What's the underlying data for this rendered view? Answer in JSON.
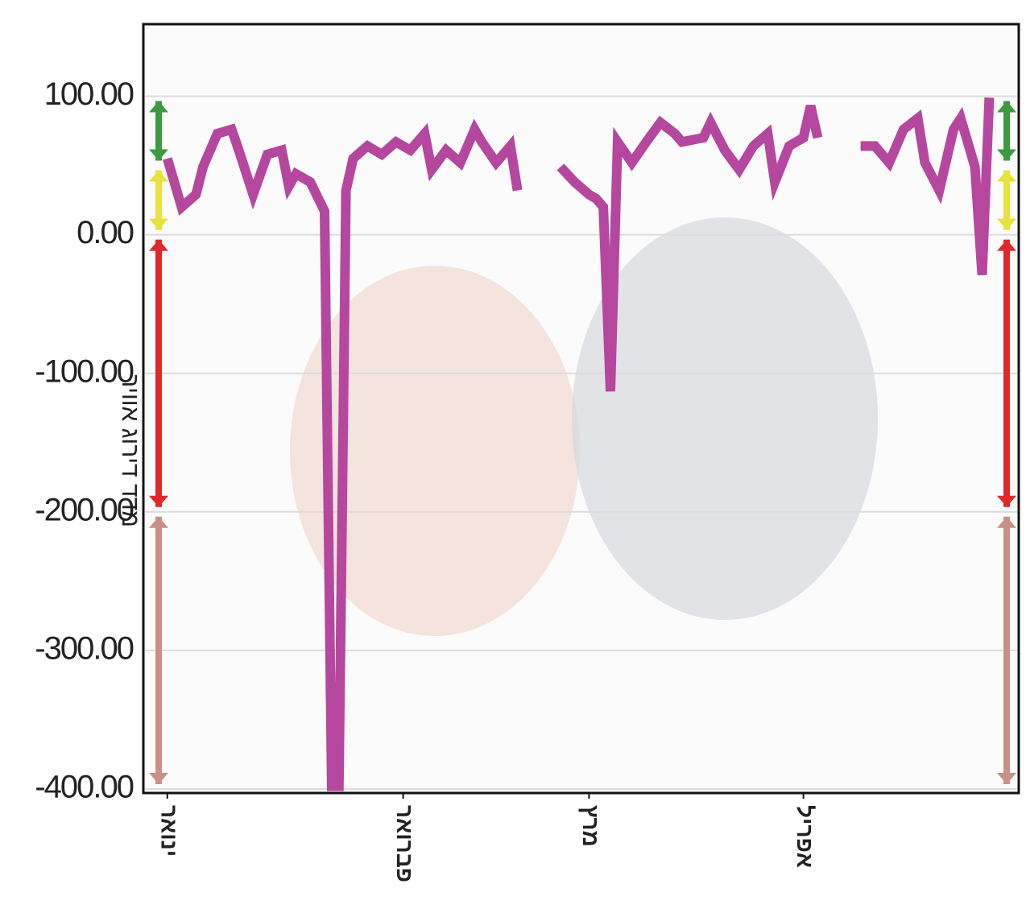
{
  "chart_data": {
    "type": "line",
    "y_label": "מדד דירוג אוויר",
    "xlim": [
      0,
      120
    ],
    "xticks": [
      {
        "value": 2,
        "label": "ינואר"
      },
      {
        "value": 35,
        "label": "פברואר"
      },
      {
        "value": 61,
        "label": "מרץ"
      },
      {
        "value": 91,
        "label": "אפריל"
      }
    ],
    "ylim": [
      -400,
      152
    ],
    "yticks": [
      {
        "value": 100,
        "label": "100.00"
      },
      {
        "value": 0,
        "label": "0.00"
      },
      {
        "value": -100,
        "label": "-100.00"
      },
      {
        "value": -200,
        "label": "-200.00"
      },
      {
        "value": -300,
        "label": "-300.00"
      },
      {
        "value": -400,
        "label": "-400.00"
      }
    ],
    "grid": true,
    "series": [
      {
        "color": "#b5489e",
        "x": [
          2,
          4,
          6,
          7,
          9,
          11,
          12,
          14,
          16,
          18,
          19,
          20,
          22,
          24,
          25,
          26,
          27,
          28,
          30,
          32,
          34,
          36,
          38,
          39,
          41,
          43,
          45,
          46,
          48,
          50,
          51,
          54,
          57,
          59,
          61,
          62,
          63,
          64,
          65,
          67,
          69,
          71,
          73,
          74,
          77,
          78,
          80,
          82,
          84,
          86,
          87,
          89,
          91,
          92,
          93,
          96,
          99,
          101,
          103,
          105,
          107,
          108,
          110,
          112,
          113,
          115,
          116,
          117
        ],
        "values": [
          55,
          20,
          29,
          49,
          73,
          76,
          61,
          29,
          58,
          61,
          35,
          44,
          38,
          17,
          -398,
          -398,
          32,
          55,
          64,
          58,
          67,
          61,
          73,
          47,
          61,
          52,
          76,
          67,
          52,
          64,
          32,
          null,
          49,
          38,
          29,
          26,
          20,
          -113,
          67,
          52,
          67,
          81,
          73,
          67,
          70,
          81,
          61,
          47,
          64,
          73,
          38,
          64,
          70,
          93,
          70,
          null,
          64,
          64,
          52,
          76,
          84,
          52,
          32,
          76,
          84,
          49,
          -29,
          99
        ]
      }
    ],
    "bands": [
      {
        "from": 100,
        "to": 50,
        "color": "#3d9a42"
      },
      {
        "from": 50,
        "to": 0,
        "color": "#e8e23a"
      },
      {
        "from": 0,
        "to": -200,
        "color": "#e0282c"
      },
      {
        "from": -200,
        "to": -400,
        "color": "#c99088"
      }
    ]
  }
}
